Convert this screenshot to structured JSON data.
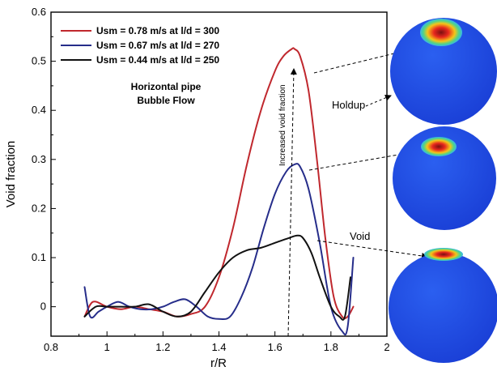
{
  "chart_data": {
    "type": "line",
    "xlabel": "r/R",
    "ylabel": "Void fraction",
    "xlim": [
      0.8,
      2.0
    ],
    "ylim": [
      -0.06,
      0.6
    ],
    "x_ticks": [
      "0.8",
      "1",
      "1.2",
      "1.4",
      "1.6",
      "1.8",
      "2"
    ],
    "y_ticks": [
      "0",
      "0.1",
      "0.2",
      "0.3",
      "0.4",
      "0.5",
      "0.6"
    ],
    "grid": false,
    "legend_position": "top-left",
    "series": [
      {
        "name": "Usm = 0.78 m/s at l/d = 300",
        "color": "#c0282e",
        "x": [
          0.92,
          0.95,
          1.0,
          1.05,
          1.1,
          1.15,
          1.2,
          1.25,
          1.3,
          1.35,
          1.4,
          1.45,
          1.5,
          1.55,
          1.6,
          1.63,
          1.66,
          1.67,
          1.69,
          1.72,
          1.75,
          1.78,
          1.81,
          1.84,
          1.86,
          1.88
        ],
        "y": [
          -0.02,
          0.01,
          0.0,
          -0.005,
          0.0,
          -0.005,
          -0.01,
          -0.02,
          -0.015,
          0.0,
          0.06,
          0.16,
          0.29,
          0.4,
          0.48,
          0.51,
          0.525,
          0.525,
          0.51,
          0.44,
          0.3,
          0.14,
          0.02,
          -0.02,
          -0.02,
          0.0
        ]
      },
      {
        "name": "Usm = 0.67 m/s at l/d = 270",
        "color": "#262d8a",
        "x": [
          0.92,
          0.94,
          0.97,
          1.0,
          1.04,
          1.08,
          1.12,
          1.16,
          1.2,
          1.24,
          1.28,
          1.32,
          1.36,
          1.4,
          1.44,
          1.48,
          1.52,
          1.56,
          1.6,
          1.64,
          1.67,
          1.69,
          1.72,
          1.76,
          1.8,
          1.84,
          1.86,
          1.88
        ],
        "y": [
          0.04,
          -0.02,
          -0.01,
          0.0,
          0.01,
          0.0,
          -0.005,
          -0.005,
          0.0,
          0.01,
          0.015,
          0.0,
          -0.02,
          -0.025,
          -0.02,
          0.02,
          0.08,
          0.16,
          0.23,
          0.275,
          0.29,
          0.285,
          0.24,
          0.13,
          0.0,
          -0.05,
          -0.04,
          0.1
        ]
      },
      {
        "name": "Usm = 0.44 m/s at l/d = 250",
        "color": "#111111",
        "x": [
          0.92,
          0.96,
          1.0,
          1.05,
          1.1,
          1.15,
          1.2,
          1.25,
          1.3,
          1.35,
          1.4,
          1.45,
          1.5,
          1.55,
          1.6,
          1.65,
          1.68,
          1.7,
          1.73,
          1.76,
          1.8,
          1.83,
          1.85,
          1.87
        ],
        "y": [
          -0.02,
          0.0,
          0.0,
          0.0,
          0.0,
          0.005,
          -0.01,
          -0.02,
          -0.01,
          0.03,
          0.07,
          0.1,
          0.115,
          0.12,
          0.13,
          0.14,
          0.145,
          0.14,
          0.11,
          0.06,
          0.0,
          -0.02,
          -0.02,
          0.06
        ]
      }
    ],
    "annotations": {
      "title_line1": "Horizontal pipe",
      "title_line2": "Bubble Flow",
      "arrow_label": "Increased void fraction",
      "holdup_label": "Holdup",
      "void_label": "Void"
    }
  }
}
